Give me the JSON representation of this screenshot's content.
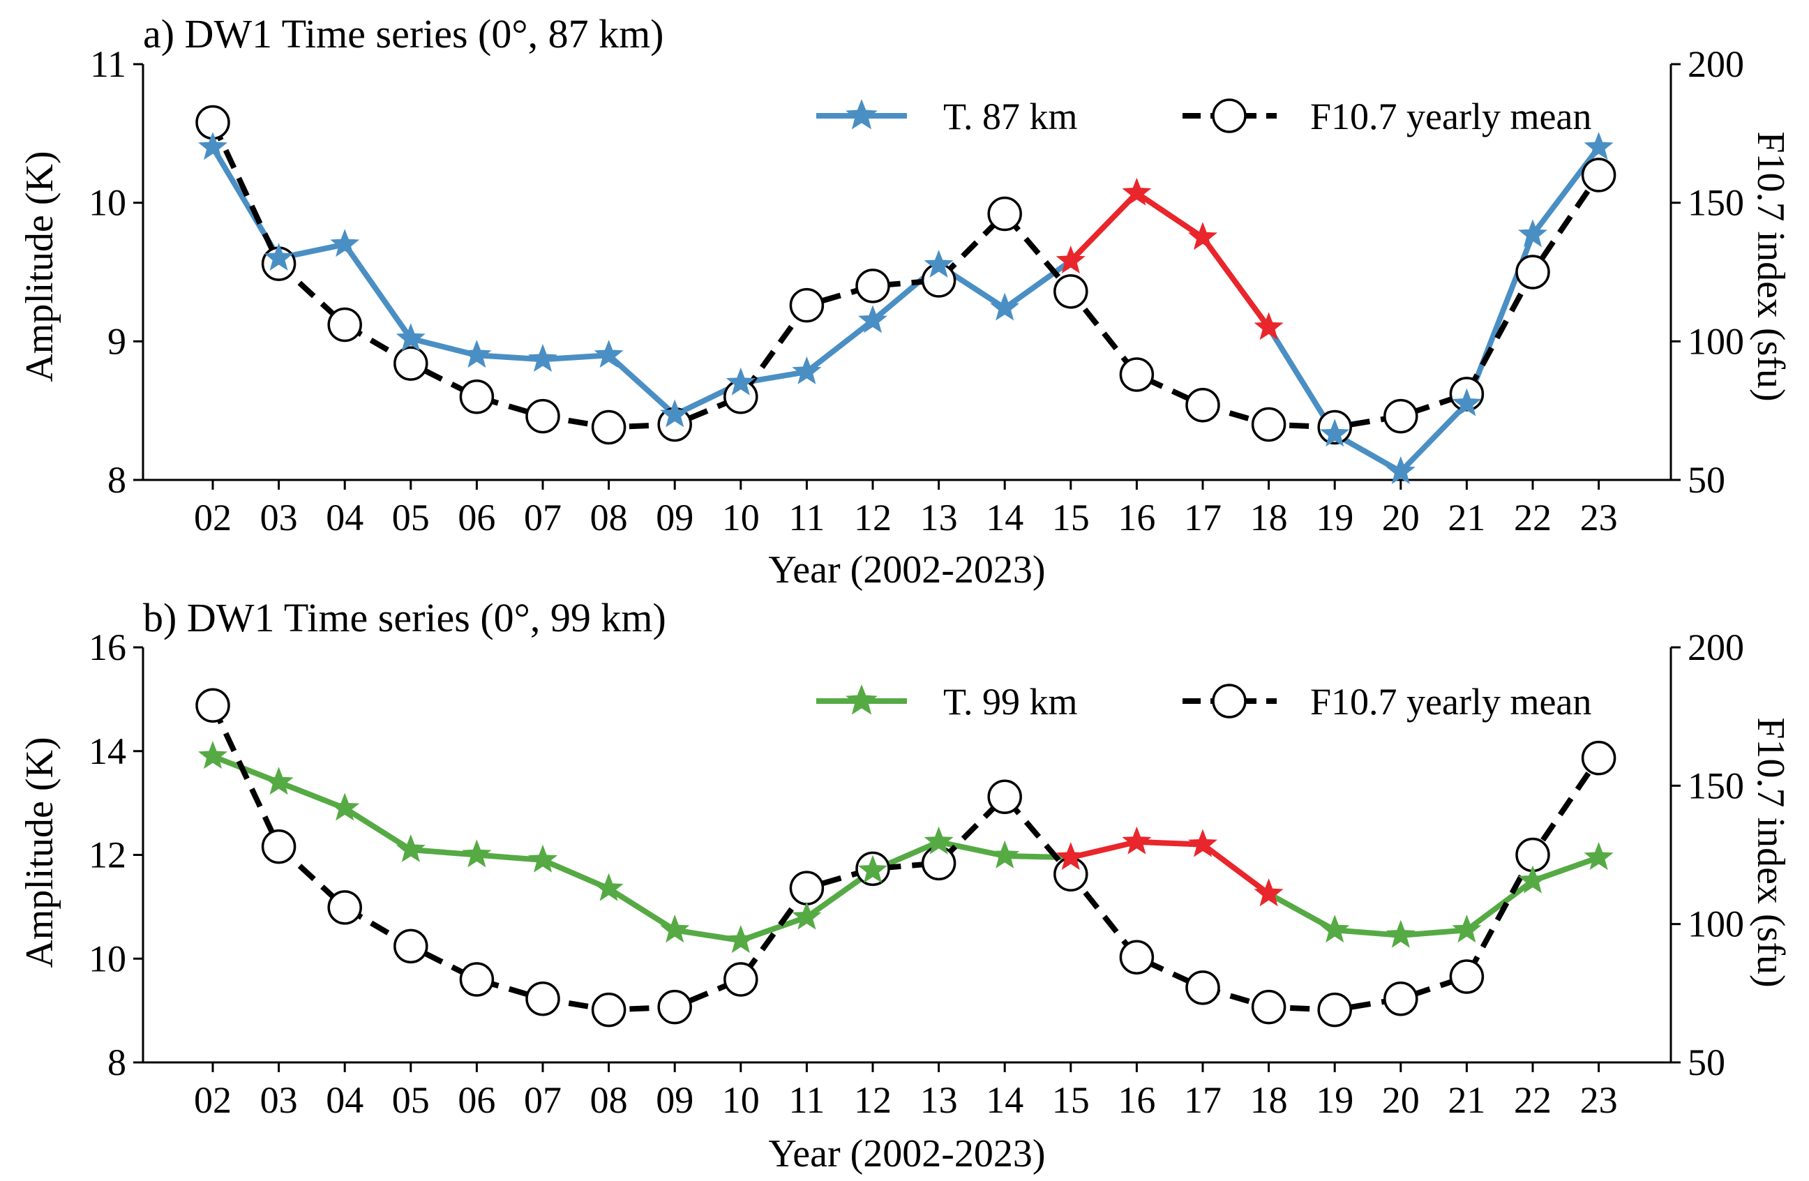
{
  "colors": {
    "blue": "#4a8fc4",
    "green": "#55aa44",
    "red": "#e8262b",
    "black": "#000000"
  },
  "chart_data": [
    {
      "type": "line",
      "title": "a) DW1 Time series (0°, 87 km)",
      "xlabel": "Year (2002-2023)",
      "ylabel": "Amplitude (K)",
      "y2label": "F10.7 index (sfu)",
      "categories": [
        "02",
        "03",
        "04",
        "05",
        "06",
        "07",
        "08",
        "09",
        "10",
        "11",
        "12",
        "13",
        "14",
        "15",
        "16",
        "17",
        "18",
        "19",
        "20",
        "21",
        "22",
        "23"
      ],
      "ylim": [
        8,
        11
      ],
      "yticks": [
        "8",
        "9",
        "10",
        "11"
      ],
      "y2lim": [
        50,
        200
      ],
      "y2ticks": [
        "50",
        "100",
        "150",
        "200"
      ],
      "series": [
        {
          "name": "T. 87 km",
          "axis": "left",
          "color": "#4a8fc4",
          "highlight_color": "#e8262b",
          "highlight_range": [
            13,
            16
          ],
          "values": [
            10.4,
            9.6,
            9.7,
            9.02,
            8.9,
            8.87,
            8.9,
            8.47,
            8.7,
            8.78,
            9.15,
            9.55,
            9.24,
            9.58,
            10.07,
            9.75,
            9.1,
            8.33,
            8.06,
            8.55,
            9.77,
            10.4
          ]
        },
        {
          "name": "F10.7 yearly mean",
          "axis": "right",
          "color": "#000000",
          "values": [
            179,
            128,
            106,
            92,
            80,
            73,
            69,
            70,
            80,
            113,
            120,
            122,
            146,
            118,
            88,
            77,
            70,
            69,
            73,
            81,
            125,
            160
          ]
        }
      ]
    },
    {
      "type": "line",
      "title": "b) DW1 Time series (0°,  99 km)",
      "xlabel": "Year (2002-2023)",
      "ylabel": "Amplitude (K)",
      "y2label": "F10.7 index (sfu)",
      "categories": [
        "02",
        "03",
        "04",
        "05",
        "06",
        "07",
        "08",
        "09",
        "10",
        "11",
        "12",
        "13",
        "14",
        "15",
        "16",
        "17",
        "18",
        "19",
        "20",
        "21",
        "22",
        "23"
      ],
      "ylim": [
        8,
        16
      ],
      "yticks": [
        "8",
        "10",
        "12",
        "14",
        "16"
      ],
      "y2lim": [
        50,
        200
      ],
      "y2ticks": [
        "50",
        "100",
        "150",
        "200"
      ],
      "series": [
        {
          "name": "T. 99 km",
          "axis": "left",
          "color": "#55aa44",
          "highlight_color": "#e8262b",
          "highlight_range": [
            13,
            16
          ],
          "values": [
            13.9,
            13.4,
            12.9,
            12.1,
            12.0,
            11.9,
            11.35,
            10.55,
            10.35,
            10.8,
            11.7,
            12.25,
            11.98,
            11.95,
            12.25,
            12.2,
            11.25,
            10.55,
            10.45,
            10.55,
            11.5,
            11.95
          ]
        },
        {
          "name": "F10.7 yearly mean",
          "axis": "right",
          "color": "#000000",
          "values": [
            179,
            128,
            106,
            92,
            80,
            73,
            69,
            70,
            80,
            113,
            120,
            122,
            146,
            118,
            88,
            77,
            70,
            69,
            73,
            81,
            125,
            160
          ]
        }
      ]
    }
  ]
}
